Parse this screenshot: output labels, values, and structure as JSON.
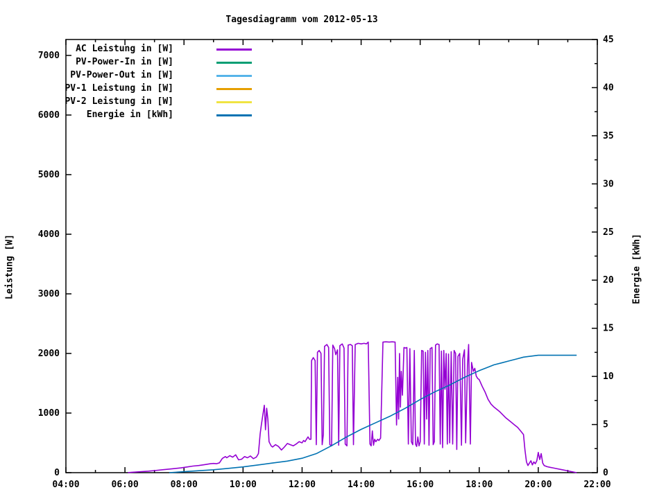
{
  "chart_data": {
    "type": "line",
    "title": "Tagesdiagramm vom 2012-05-13",
    "background_color": "#ffffff",
    "border_color": "#000000",
    "text_color": "#000000",
    "grid": false,
    "legend_position": "top-left-inside",
    "x_axis": {
      "label": "",
      "min_hour": 4,
      "max_hour": 22,
      "major_step_hours": 2,
      "minor_step_hours": 1,
      "tick_labels": [
        "04:00",
        "06:00",
        "08:00",
        "10:00",
        "12:00",
        "14:00",
        "16:00",
        "18:00",
        "20:00",
        "22:00"
      ]
    },
    "y1": {
      "label": "Leistung [W]",
      "min": 0,
      "max": 7267,
      "major_step": 1000,
      "tick_labels": [
        "0",
        "1000",
        "2000",
        "3000",
        "4000",
        "5000",
        "6000",
        "7000"
      ]
    },
    "y2": {
      "label": "Energie [kWh]",
      "min": 0,
      "max": 45,
      "major_step": 5,
      "minor_step": 2.5,
      "tick_labels": [
        "0",
        "5",
        "10",
        "15",
        "20",
        "25",
        "30",
        "35",
        "40",
        "45"
      ]
    },
    "series": [
      {
        "name": "AC Leistung in [W]",
        "color": "#9400d3",
        "axis": "y1",
        "points": [
          [
            6.1,
            0
          ],
          [
            6.2,
            5
          ],
          [
            6.5,
            15
          ],
          [
            6.8,
            25
          ],
          [
            7.0,
            35
          ],
          [
            7.3,
            50
          ],
          [
            7.6,
            65
          ],
          [
            7.9,
            80
          ],
          [
            8.1,
            95
          ],
          [
            8.3,
            110
          ],
          [
            8.5,
            120
          ],
          [
            8.7,
            135
          ],
          [
            8.9,
            150
          ],
          [
            9.0,
            155
          ],
          [
            9.1,
            150
          ],
          [
            9.2,
            165
          ],
          [
            9.3,
            240
          ],
          [
            9.4,
            270
          ],
          [
            9.45,
            250
          ],
          [
            9.55,
            285
          ],
          [
            9.65,
            260
          ],
          [
            9.75,
            300
          ],
          [
            9.85,
            215
          ],
          [
            9.95,
            225
          ],
          [
            10.05,
            270
          ],
          [
            10.15,
            250
          ],
          [
            10.25,
            280
          ],
          [
            10.35,
            235
          ],
          [
            10.45,
            260
          ],
          [
            10.52,
            320
          ],
          [
            10.58,
            650
          ],
          [
            10.62,
            800
          ],
          [
            10.68,
            1000
          ],
          [
            10.72,
            1130
          ],
          [
            10.76,
            720
          ],
          [
            10.8,
            1080
          ],
          [
            10.84,
            900
          ],
          [
            10.88,
            520
          ],
          [
            10.95,
            450
          ],
          [
            11.0,
            430
          ],
          [
            11.1,
            470
          ],
          [
            11.2,
            440
          ],
          [
            11.3,
            380
          ],
          [
            11.4,
            430
          ],
          [
            11.5,
            490
          ],
          [
            11.6,
            470
          ],
          [
            11.7,
            450
          ],
          [
            11.8,
            480
          ],
          [
            11.9,
            520
          ],
          [
            12.0,
            500
          ],
          [
            12.05,
            540
          ],
          [
            12.1,
            520
          ],
          [
            12.15,
            560
          ],
          [
            12.2,
            600
          ],
          [
            12.25,
            560
          ],
          [
            12.3,
            560
          ],
          [
            12.32,
            1880
          ],
          [
            12.38,
            1930
          ],
          [
            12.44,
            1880
          ],
          [
            12.48,
            470
          ],
          [
            12.52,
            2020
          ],
          [
            12.58,
            2050
          ],
          [
            12.64,
            2000
          ],
          [
            12.68,
            470
          ],
          [
            12.72,
            640
          ],
          [
            12.76,
            2120
          ],
          [
            12.84,
            2150
          ],
          [
            12.9,
            2100
          ],
          [
            12.94,
            470
          ],
          [
            13.0,
            450
          ],
          [
            13.04,
            2140
          ],
          [
            13.1,
            2080
          ],
          [
            13.14,
            1980
          ],
          [
            13.2,
            2060
          ],
          [
            13.24,
            460
          ],
          [
            13.28,
            2130
          ],
          [
            13.36,
            2160
          ],
          [
            13.42,
            2090
          ],
          [
            13.46,
            480
          ],
          [
            13.52,
            450
          ],
          [
            13.56,
            2140
          ],
          [
            13.64,
            2150
          ],
          [
            13.7,
            2130
          ],
          [
            13.74,
            470
          ],
          [
            13.8,
            2150
          ],
          [
            13.9,
            2170
          ],
          [
            14.0,
            2160
          ],
          [
            14.1,
            2170
          ],
          [
            14.18,
            2160
          ],
          [
            14.24,
            2190
          ],
          [
            14.3,
            480
          ],
          [
            14.34,
            450
          ],
          [
            14.38,
            700
          ],
          [
            14.42,
            460
          ],
          [
            14.46,
            560
          ],
          [
            14.5,
            520
          ],
          [
            14.56,
            560
          ],
          [
            14.6,
            540
          ],
          [
            14.66,
            580
          ],
          [
            14.74,
            2190
          ],
          [
            14.84,
            2195
          ],
          [
            14.95,
            2190
          ],
          [
            15.05,
            2195
          ],
          [
            15.15,
            2190
          ],
          [
            15.2,
            800
          ],
          [
            15.24,
            1600
          ],
          [
            15.27,
            900
          ],
          [
            15.3,
            2000
          ],
          [
            15.33,
            1100
          ],
          [
            15.36,
            1700
          ],
          [
            15.4,
            1300
          ],
          [
            15.45,
            2100
          ],
          [
            15.5,
            2090
          ],
          [
            15.55,
            2100
          ],
          [
            15.6,
            480
          ],
          [
            15.65,
            2080
          ],
          [
            15.7,
            520
          ],
          [
            15.75,
            470
          ],
          [
            15.8,
            2050
          ],
          [
            15.84,
            480
          ],
          [
            15.88,
            440
          ],
          [
            15.92,
            600
          ],
          [
            15.96,
            450
          ],
          [
            16.0,
            520
          ],
          [
            16.05,
            2050
          ],
          [
            16.1,
            2040
          ],
          [
            16.14,
            480
          ],
          [
            16.18,
            2020
          ],
          [
            16.22,
            900
          ],
          [
            16.26,
            2050
          ],
          [
            16.3,
            460
          ],
          [
            16.34,
            2080
          ],
          [
            16.4,
            2100
          ],
          [
            16.44,
            470
          ],
          [
            16.48,
            520
          ],
          [
            16.52,
            2140
          ],
          [
            16.58,
            2160
          ],
          [
            16.64,
            2150
          ],
          [
            16.68,
            480
          ],
          [
            16.72,
            2040
          ],
          [
            16.76,
            420
          ],
          [
            16.8,
            2050
          ],
          [
            16.84,
            1400
          ],
          [
            16.88,
            2000
          ],
          [
            16.92,
            480
          ],
          [
            16.96,
            1990
          ],
          [
            17.0,
            500
          ],
          [
            17.05,
            2030
          ],
          [
            17.1,
            480
          ],
          [
            17.15,
            2050
          ],
          [
            17.2,
            2000
          ],
          [
            17.24,
            390
          ],
          [
            17.28,
            1950
          ],
          [
            17.34,
            2000
          ],
          [
            17.4,
            460
          ],
          [
            17.44,
            1900
          ],
          [
            17.5,
            2060
          ],
          [
            17.54,
            500
          ],
          [
            17.6,
            1800
          ],
          [
            17.64,
            2150
          ],
          [
            17.7,
            480
          ],
          [
            17.74,
            1850
          ],
          [
            17.8,
            1700
          ],
          [
            17.85,
            1750
          ],
          [
            17.9,
            1620
          ],
          [
            17.95,
            1580
          ],
          [
            18.0,
            1560
          ],
          [
            18.1,
            1450
          ],
          [
            18.2,
            1350
          ],
          [
            18.3,
            1230
          ],
          [
            18.4,
            1150
          ],
          [
            18.5,
            1100
          ],
          [
            18.6,
            1060
          ],
          [
            18.7,
            1020
          ],
          [
            18.8,
            970
          ],
          [
            18.9,
            920
          ],
          [
            19.0,
            880
          ],
          [
            19.1,
            840
          ],
          [
            19.2,
            800
          ],
          [
            19.3,
            760
          ],
          [
            19.4,
            700
          ],
          [
            19.5,
            640
          ],
          [
            19.55,
            380
          ],
          [
            19.6,
            180
          ],
          [
            19.65,
            120
          ],
          [
            19.7,
            160
          ],
          [
            19.75,
            200
          ],
          [
            19.8,
            130
          ],
          [
            19.85,
            180
          ],
          [
            19.9,
            150
          ],
          [
            19.95,
            200
          ],
          [
            20.0,
            340
          ],
          [
            20.05,
            220
          ],
          [
            20.1,
            320
          ],
          [
            20.15,
            160
          ],
          [
            20.2,
            120
          ],
          [
            20.3,
            100
          ],
          [
            20.4,
            90
          ],
          [
            20.5,
            80
          ],
          [
            20.6,
            70
          ],
          [
            20.8,
            50
          ],
          [
            21.0,
            30
          ],
          [
            21.1,
            20
          ],
          [
            21.2,
            10
          ],
          [
            21.3,
            0
          ]
        ]
      },
      {
        "name": "PV-Power-In in [W]",
        "color": "#009e73",
        "axis": "y1",
        "points": []
      },
      {
        "name": "PV-Power-Out in [W]",
        "color": "#56b4e9",
        "axis": "y1",
        "points": []
      },
      {
        "name": "PV-1 Leistung in [W]",
        "color": "#e69f00",
        "axis": "y1",
        "points": []
      },
      {
        "name": "PV-2 Leistung in [W]",
        "color": "#f0e442",
        "axis": "y1",
        "points": []
      },
      {
        "name": "Energie in [kWh]",
        "color": "#0072b2",
        "axis": "y2",
        "points": [
          [
            7.5,
            0
          ],
          [
            8.0,
            0.1
          ],
          [
            8.5,
            0.2
          ],
          [
            9.0,
            0.3
          ],
          [
            9.5,
            0.45
          ],
          [
            10.0,
            0.6
          ],
          [
            10.5,
            0.8
          ],
          [
            11.0,
            1.0
          ],
          [
            11.5,
            1.2
          ],
          [
            12.0,
            1.5
          ],
          [
            12.5,
            2.0
          ],
          [
            13.0,
            2.8
          ],
          [
            13.5,
            3.7
          ],
          [
            14.0,
            4.5
          ],
          [
            14.5,
            5.2
          ],
          [
            15.0,
            5.9
          ],
          [
            15.5,
            6.7
          ],
          [
            16.0,
            7.6
          ],
          [
            16.5,
            8.4
          ],
          [
            17.0,
            9.1
          ],
          [
            17.5,
            9.9
          ],
          [
            18.0,
            10.6
          ],
          [
            18.25,
            10.9
          ],
          [
            18.5,
            11.2
          ],
          [
            18.75,
            11.4
          ],
          [
            19.0,
            11.6
          ],
          [
            19.25,
            11.8
          ],
          [
            19.5,
            12.0
          ],
          [
            19.75,
            12.1
          ],
          [
            20.0,
            12.2
          ],
          [
            20.5,
            12.2
          ],
          [
            21.0,
            12.2
          ],
          [
            21.3,
            12.2
          ]
        ]
      }
    ]
  }
}
